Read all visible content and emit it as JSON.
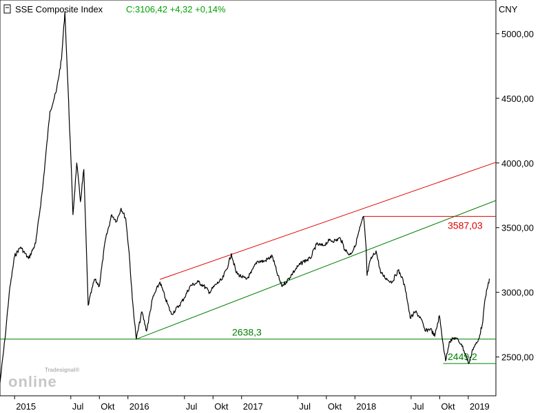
{
  "header": {
    "name": "SSE Composite Index",
    "quote": "C:3106,42 +4,32 +0,14%",
    "currency": "CNY"
  },
  "logo": {
    "small": "Tradesignal®",
    "large": "online"
  },
  "colors": {
    "price": "#000000",
    "resistance": "#e00000",
    "support": "#008000",
    "axis": "#000000",
    "quote": "#00a000"
  },
  "chart_data": {
    "type": "line",
    "y_unit": "CNY",
    "ylim": [
      2200,
      5260
    ],
    "y_ticks": [
      {
        "value": 2500,
        "label": "2500,00"
      },
      {
        "value": 3000,
        "label": "3000,00"
      },
      {
        "value": 3500,
        "label": "3500,00"
      },
      {
        "value": 4000,
        "label": "4000,00"
      },
      {
        "value": 4500,
        "label": "4500,00"
      },
      {
        "value": 5000,
        "label": "5000,00"
      }
    ],
    "x_range": [
      "2014-11-15",
      "2019-03-31"
    ],
    "x_ticks": [
      {
        "date": "2015-01-01",
        "label": "2015"
      },
      {
        "date": "2015-07-01",
        "label": "Jul"
      },
      {
        "date": "2015-10-01",
        "label": "Okt"
      },
      {
        "date": "2016-01-01",
        "label": "2016"
      },
      {
        "date": "2016-07-01",
        "label": "Jul"
      },
      {
        "date": "2016-10-01",
        "label": "Okt"
      },
      {
        "date": "2017-01-01",
        "label": "2017"
      },
      {
        "date": "2017-07-01",
        "label": "Jul"
      },
      {
        "date": "2017-10-01",
        "label": "Okt"
      },
      {
        "date": "2018-01-01",
        "label": "2018"
      },
      {
        "date": "2018-07-01",
        "label": "Jul"
      },
      {
        "date": "2018-10-01",
        "label": "Okt"
      },
      {
        "date": "2019-01-01",
        "label": "2019"
      }
    ],
    "series": [
      {
        "points": [
          [
            "2014-11-15",
            2300
          ],
          [
            "2014-12-01",
            2640
          ],
          [
            "2014-12-15",
            3000
          ],
          [
            "2015-01-01",
            3280
          ],
          [
            "2015-01-20",
            3350
          ],
          [
            "2015-02-15",
            3260
          ],
          [
            "2015-03-10",
            3380
          ],
          [
            "2015-04-01",
            3800
          ],
          [
            "2015-04-25",
            4400
          ],
          [
            "2015-05-15",
            4550
          ],
          [
            "2015-06-01",
            4800
          ],
          [
            "2015-06-12",
            5170
          ],
          [
            "2015-06-20",
            4700
          ],
          [
            "2015-07-01",
            4050
          ],
          [
            "2015-07-08",
            3600
          ],
          [
            "2015-07-20",
            4000
          ],
          [
            "2015-08-01",
            3700
          ],
          [
            "2015-08-12",
            3950
          ],
          [
            "2015-08-26",
            2900
          ],
          [
            "2015-09-15",
            3100
          ],
          [
            "2015-10-01",
            3050
          ],
          [
            "2015-10-20",
            3400
          ],
          [
            "2015-11-10",
            3600
          ],
          [
            "2015-11-25",
            3550
          ],
          [
            "2015-12-10",
            3650
          ],
          [
            "2015-12-25",
            3570
          ],
          [
            "2016-01-05",
            3300
          ],
          [
            "2016-01-15",
            2950
          ],
          [
            "2016-01-28",
            2638
          ],
          [
            "2016-02-15",
            2850
          ],
          [
            "2016-03-01",
            2700
          ],
          [
            "2016-03-20",
            2950
          ],
          [
            "2016-04-13",
            3080
          ],
          [
            "2016-05-01",
            2950
          ],
          [
            "2016-05-20",
            2830
          ],
          [
            "2016-06-15",
            2900
          ],
          [
            "2016-07-01",
            2960
          ],
          [
            "2016-07-20",
            3050
          ],
          [
            "2016-08-15",
            3080
          ],
          [
            "2016-09-01",
            3050
          ],
          [
            "2016-09-20",
            3000
          ],
          [
            "2016-10-10",
            3060
          ],
          [
            "2016-10-31",
            3100
          ],
          [
            "2016-11-20",
            3220
          ],
          [
            "2016-11-29",
            3300
          ],
          [
            "2016-12-15",
            3150
          ],
          [
            "2017-01-01",
            3120
          ],
          [
            "2017-01-16",
            3100
          ],
          [
            "2017-02-01",
            3150
          ],
          [
            "2017-02-20",
            3240
          ],
          [
            "2017-03-15",
            3240
          ],
          [
            "2017-04-10",
            3280
          ],
          [
            "2017-04-25",
            3150
          ],
          [
            "2017-05-10",
            3050
          ],
          [
            "2017-05-25",
            3080
          ],
          [
            "2017-06-15",
            3150
          ],
          [
            "2017-07-01",
            3200
          ],
          [
            "2017-07-20",
            3240
          ],
          [
            "2017-08-10",
            3260
          ],
          [
            "2017-08-30",
            3370
          ],
          [
            "2017-09-20",
            3360
          ],
          [
            "2017-10-10",
            3400
          ],
          [
            "2017-10-31",
            3400
          ],
          [
            "2017-11-15",
            3420
          ],
          [
            "2017-11-30",
            3330
          ],
          [
            "2017-12-15",
            3290
          ],
          [
            "2018-01-01",
            3350
          ],
          [
            "2018-01-15",
            3480
          ],
          [
            "2018-01-29",
            3587
          ],
          [
            "2018-02-06",
            3350
          ],
          [
            "2018-02-09",
            3130
          ],
          [
            "2018-02-20",
            3250
          ],
          [
            "2018-03-10",
            3320
          ],
          [
            "2018-03-25",
            3150
          ],
          [
            "2018-04-15",
            3100
          ],
          [
            "2018-05-01",
            3080
          ],
          [
            "2018-05-20",
            3170
          ],
          [
            "2018-06-01",
            3120
          ],
          [
            "2018-06-15",
            3000
          ],
          [
            "2018-06-28",
            2800
          ],
          [
            "2018-07-15",
            2850
          ],
          [
            "2018-08-01",
            2800
          ],
          [
            "2018-08-15",
            2700
          ],
          [
            "2018-09-01",
            2720
          ],
          [
            "2018-09-15",
            2660
          ],
          [
            "2018-09-30",
            2820
          ],
          [
            "2018-10-12",
            2600
          ],
          [
            "2018-10-20",
            2470
          ],
          [
            "2018-11-01",
            2620
          ],
          [
            "2018-11-20",
            2650
          ],
          [
            "2018-12-10",
            2600
          ],
          [
            "2019-01-03",
            2449
          ],
          [
            "2019-01-15",
            2560
          ],
          [
            "2019-02-01",
            2620
          ],
          [
            "2019-02-15",
            2750
          ],
          [
            "2019-02-25",
            2960
          ],
          [
            "2019-03-05",
            3050
          ],
          [
            "2019-03-10",
            3106
          ]
        ]
      }
    ],
    "lines": [
      {
        "role": "resistance-trendline",
        "from": [
          "2016-04-13",
          3100
        ],
        "to": [
          "2019-03-31",
          4005
        ]
      },
      {
        "role": "support-trendline",
        "from": [
          "2016-01-28",
          2638
        ],
        "to": [
          "2019-03-31",
          3710
        ]
      },
      {
        "role": "horizontal-level",
        "value": 3587.03,
        "label": "3587,03",
        "from_date": "2018-01-29"
      },
      {
        "role": "horizontal-level",
        "value": 2638.3,
        "label": "2638,3",
        "from_date": "2014-11-15"
      },
      {
        "role": "horizontal-level",
        "value": 2449.2,
        "label": "2449,2",
        "from_date": "2018-10-12"
      }
    ]
  }
}
